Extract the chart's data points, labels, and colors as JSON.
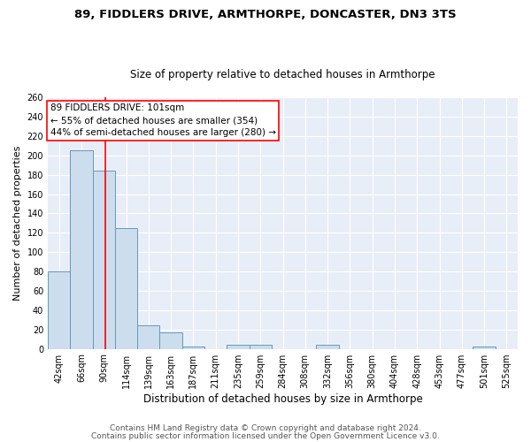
{
  "title1": "89, FIDDLERS DRIVE, ARMTHORPE, DONCASTER, DN3 3TS",
  "title2": "Size of property relative to detached houses in Armthorpe",
  "xlabel": "Distribution of detached houses by size in Armthorpe",
  "ylabel": "Number of detached properties",
  "footnote1": "Contains HM Land Registry data © Crown copyright and database right 2024.",
  "footnote2": "Contains public sector information licensed under the Open Government Licence v3.0.",
  "bin_labels": [
    "42sqm",
    "66sqm",
    "90sqm",
    "114sqm",
    "139sqm",
    "163sqm",
    "187sqm",
    "211sqm",
    "235sqm",
    "259sqm",
    "284sqm",
    "308sqm",
    "332sqm",
    "356sqm",
    "380sqm",
    "404sqm",
    "428sqm",
    "453sqm",
    "477sqm",
    "501sqm",
    "525sqm"
  ],
  "bar_values": [
    80,
    205,
    184,
    125,
    24,
    17,
    2,
    0,
    4,
    4,
    0,
    0,
    4,
    0,
    0,
    0,
    0,
    0,
    0,
    2,
    0
  ],
  "bar_color": "#ccdded",
  "bar_edge_color": "#6699bb",
  "vline_color": "red",
  "vline_x": 2.08,
  "annotation_text": "89 FIDDLERS DRIVE: 101sqm\n← 55% of detached houses are smaller (354)\n44% of semi-detached houses are larger (280) →",
  "annotation_box_color": "white",
  "annotation_box_edge": "red",
  "ylim": [
    0,
    260
  ],
  "yticks": [
    0,
    20,
    40,
    60,
    80,
    100,
    120,
    140,
    160,
    180,
    200,
    220,
    240,
    260
  ],
  "background_color": "#e8eef8",
  "grid_color": "white",
  "title1_fontsize": 9.5,
  "title2_fontsize": 8.5,
  "xlabel_fontsize": 8.5,
  "ylabel_fontsize": 8,
  "tick_fontsize": 7,
  "annot_fontsize": 7.5,
  "footnote_fontsize": 6.5
}
